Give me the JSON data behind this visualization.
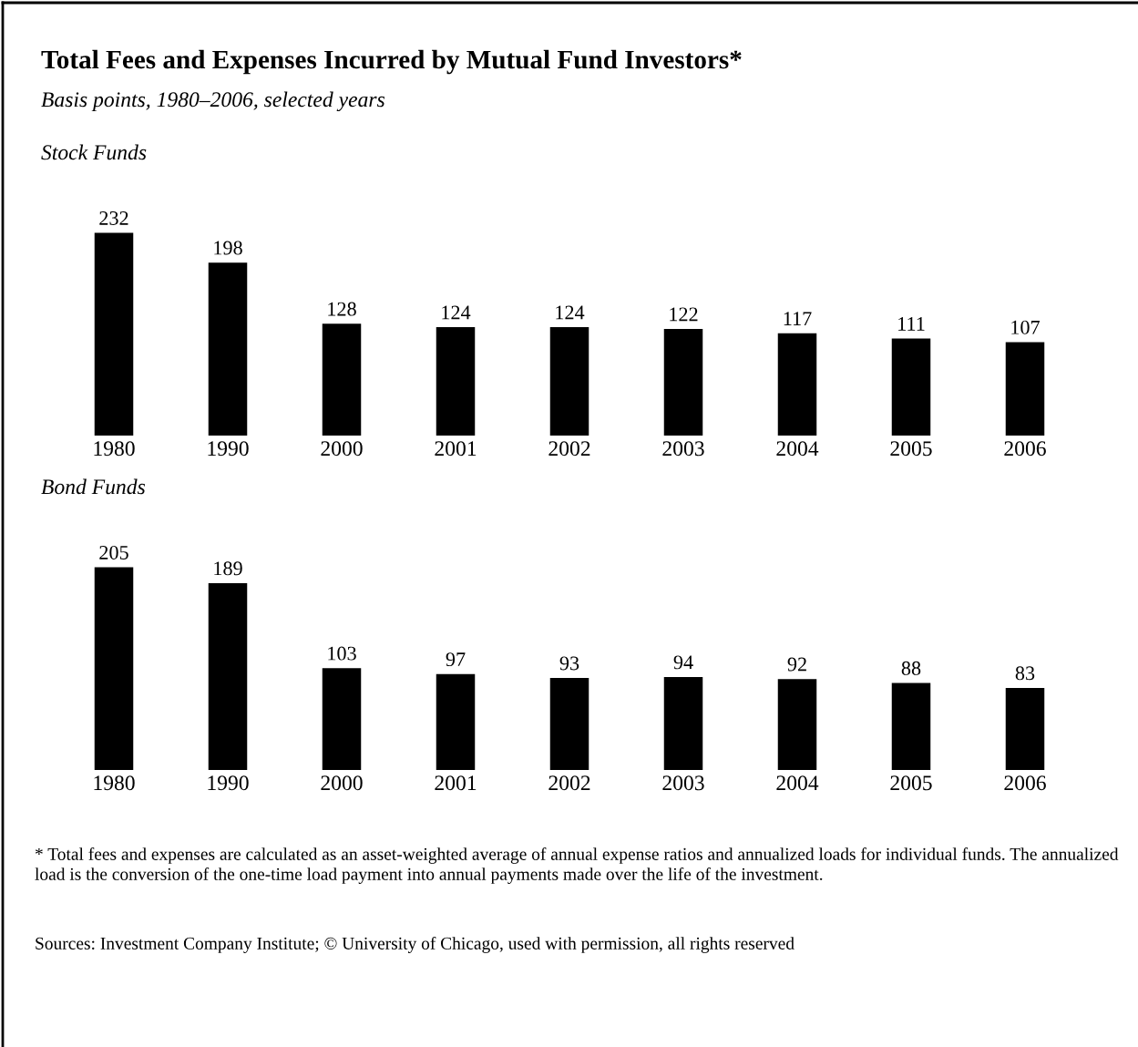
{
  "chart_data": [
    {
      "type": "other",
      "title": "Total Fees and Expenses Incurred by Mutual Fund Investors*",
      "subtitle": "Basis points, 1980–2006, selected years"
    },
    {
      "type": "bar",
      "title": "Stock Funds",
      "categories": [
        "1980",
        "1990",
        "2000",
        "2001",
        "2002",
        "2003",
        "2004",
        "2005",
        "2006"
      ],
      "values": [
        232,
        198,
        128,
        124,
        124,
        122,
        117,
        111,
        107
      ],
      "color": "#000000",
      "data_labels": true,
      "grid": false,
      "legend": false
    },
    {
      "type": "bar",
      "title": "Bond Funds",
      "categories": [
        "1980",
        "1990",
        "2000",
        "2001",
        "2002",
        "2003",
        "2004",
        "2005",
        "2006"
      ],
      "values": [
        205,
        189,
        103,
        97,
        93,
        94,
        92,
        88,
        83
      ],
      "color": "#000000",
      "data_labels": true,
      "grid": false,
      "legend": false,
      "annotations": [
        "* Total fees and expenses are calculated as an asset-weighted average of annual expense ratios and annualized loads for individual funds. The annualized load is the conversion of the one-time load payment into annual payments made over the life of the investment.",
        "Sources: Investment Company Institute; © University of Chicago, used with permission, all rights reserved"
      ]
    }
  ]
}
